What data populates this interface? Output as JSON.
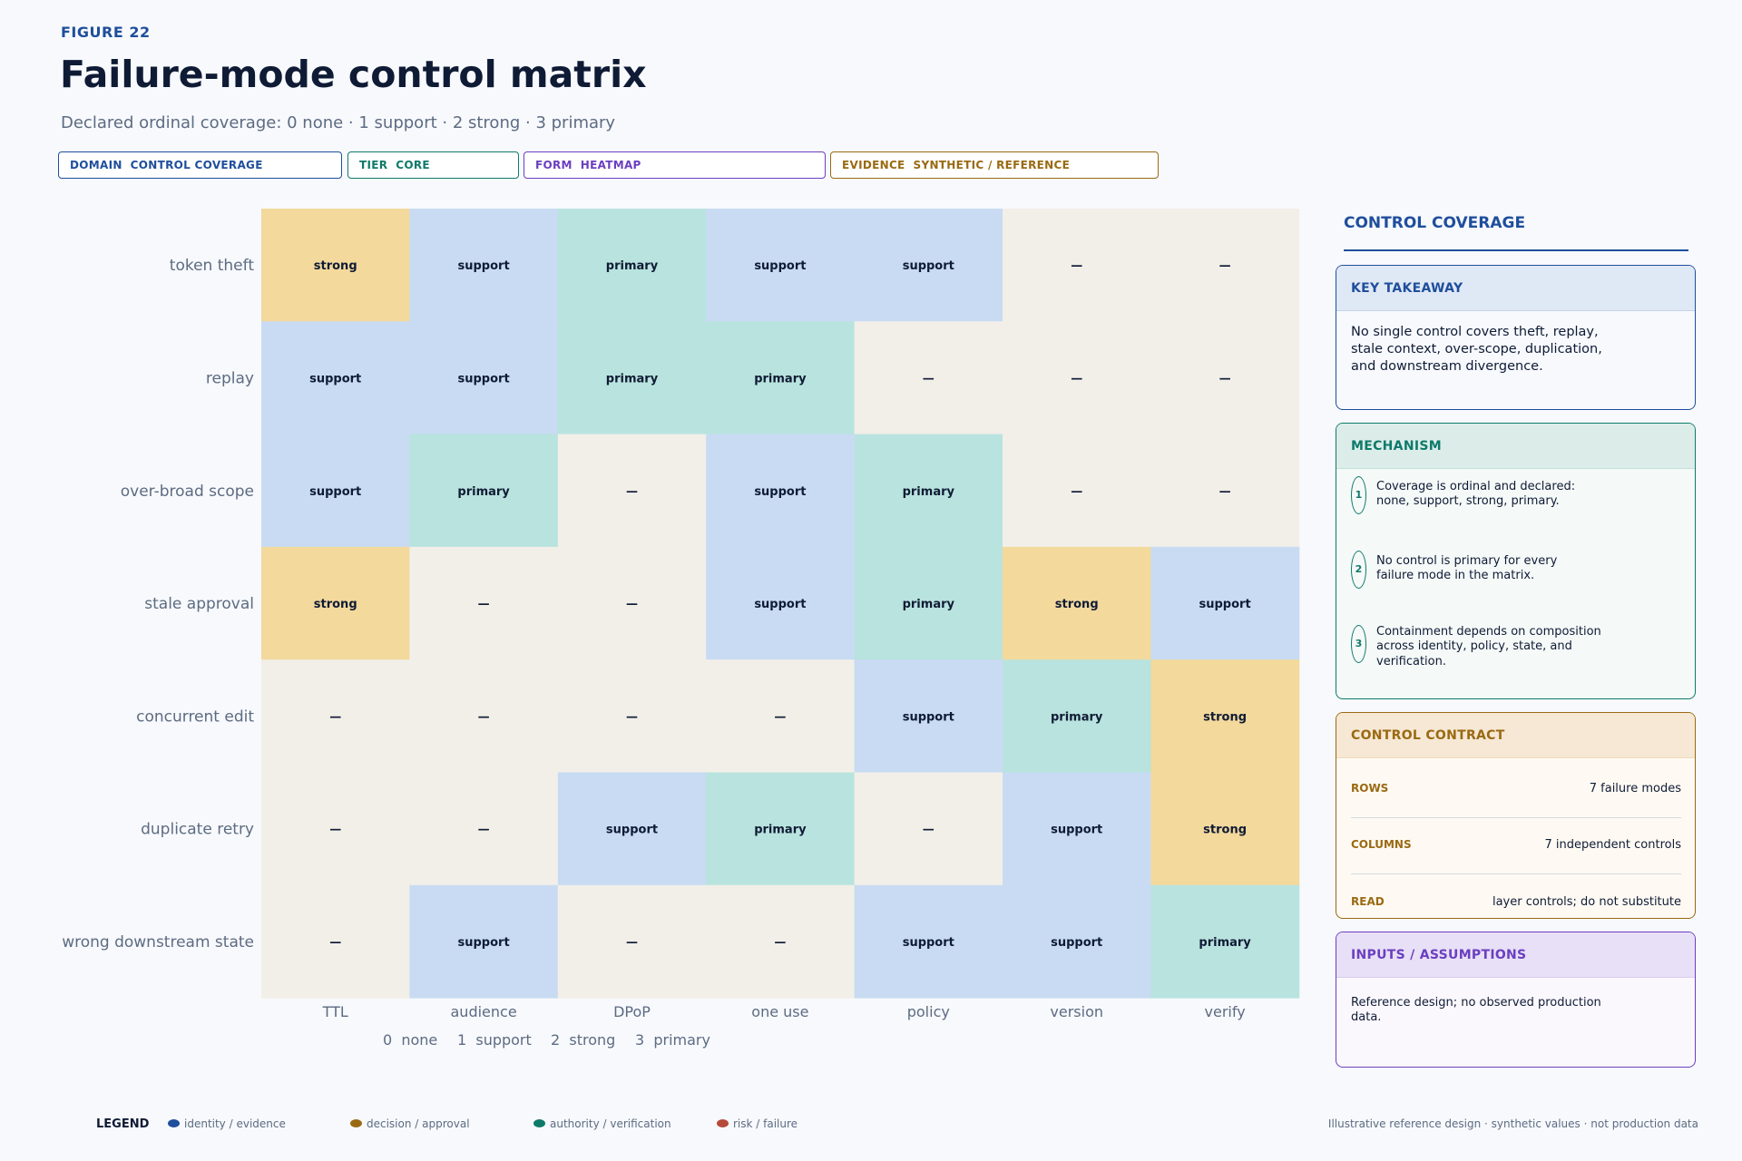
{
  "figure_label": "FIGURE 22",
  "title": "Failure-mode control matrix",
  "subtitle": "Declared ordinal coverage: 0 none · 1 support · 2 strong · 3 primary",
  "tags": [
    {
      "text": "DOMAIN  CONTROL COVERAGE",
      "color": "#1f4e9c"
    },
    {
      "text": "TIER  CORE",
      "color": "#0e7a6a"
    },
    {
      "text": "FORM  HEATMAP",
      "color": "#6b3fc0"
    },
    {
      "text": "EVIDENCE  SYNTHETIC / REFERENCE",
      "color": "#9a6a12"
    }
  ],
  "chart_data": {
    "type": "heatmap",
    "rows": [
      "token theft",
      "replay",
      "over-broad scope",
      "stale approval",
      "concurrent edit",
      "duplicate retry",
      "wrong downstream state"
    ],
    "columns": [
      "TTL",
      "audience",
      "DPoP",
      "one use",
      "policy",
      "version",
      "verify"
    ],
    "values": [
      [
        2,
        1,
        3,
        1,
        1,
        0,
        0
      ],
      [
        1,
        1,
        3,
        3,
        0,
        0,
        0
      ],
      [
        1,
        3,
        0,
        1,
        3,
        0,
        0
      ],
      [
        2,
        0,
        0,
        1,
        3,
        2,
        1
      ],
      [
        0,
        0,
        0,
        0,
        1,
        3,
        2
      ],
      [
        0,
        0,
        1,
        3,
        0,
        1,
        2
      ],
      [
        0,
        1,
        0,
        0,
        1,
        1,
        3
      ]
    ],
    "levels": [
      {
        "value": 0,
        "label": "none",
        "cell_text": "—",
        "color": "#f2efe8"
      },
      {
        "value": 1,
        "label": "support",
        "cell_text": "support",
        "color": "#c8dbf3"
      },
      {
        "value": 2,
        "label": "strong",
        "cell_text": "strong",
        "color": "#f3d99c"
      },
      {
        "value": 3,
        "label": "primary",
        "cell_text": "primary",
        "color": "#b9e3de"
      }
    ],
    "scale_legend": [
      "0  none",
      "1  support",
      "2  strong",
      "3  primary"
    ]
  },
  "panel": {
    "title": "CONTROL COVERAGE",
    "key_takeaway": {
      "title": "KEY TAKEAWAY",
      "lines": [
        "No single control covers theft, replay,",
        "stale context, over-scope, duplication,",
        "and downstream divergence."
      ]
    },
    "mechanism": {
      "title": "MECHANISM",
      "items": [
        {
          "num": "1",
          "lines": [
            "Coverage is ordinal and declared:",
            "none, support, strong, primary."
          ]
        },
        {
          "num": "2",
          "lines": [
            "No control is primary for every",
            "failure mode in the matrix."
          ]
        },
        {
          "num": "3",
          "lines": [
            "Containment depends on composition",
            "across identity, policy, state, and",
            "verification."
          ]
        }
      ]
    },
    "control_contract": {
      "title": "CONTROL CONTRACT",
      "rows": [
        {
          "key": "ROWS",
          "value": "7 failure modes"
        },
        {
          "key": "COLUMNS",
          "value": "7 independent controls"
        },
        {
          "key": "READ",
          "value": "layer controls; do not substitute"
        }
      ]
    },
    "inputs": {
      "title": "INPUTS / ASSUMPTIONS",
      "lines": [
        "Reference design; no observed production",
        "data."
      ]
    }
  },
  "legend": {
    "title": "LEGEND",
    "items": [
      {
        "label": "identity / evidence",
        "color": "#1f4e9c"
      },
      {
        "label": "decision / approval",
        "color": "#9a6a12"
      },
      {
        "label": "authority / verification",
        "color": "#0e7a6a"
      },
      {
        "label": "risk / failure",
        "color": "#b54a3a"
      }
    ]
  },
  "footer_note": "Illustrative reference design · synthetic values · not production data"
}
